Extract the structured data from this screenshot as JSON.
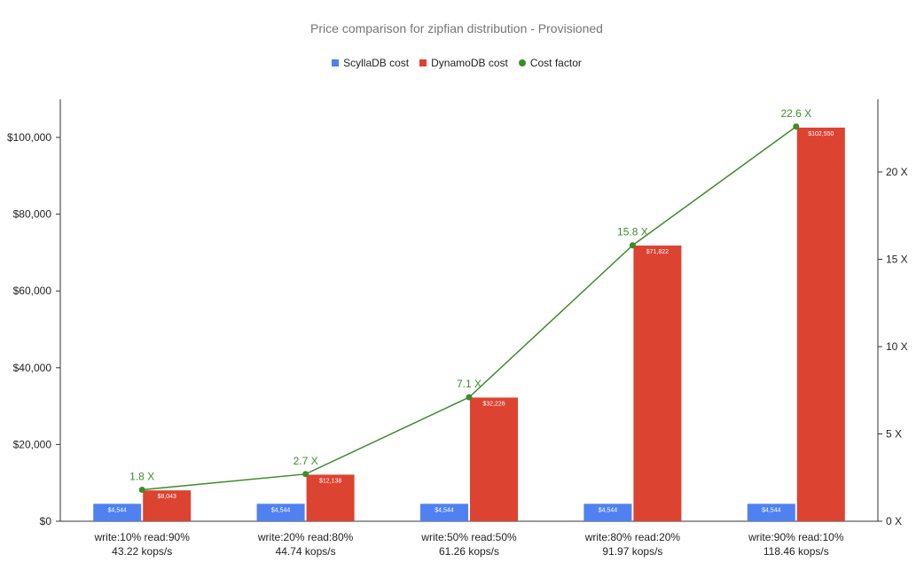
{
  "chart_data": {
    "type": "bar",
    "title": "Price comparison for zipfian distribution - Provisioned",
    "categories": [
      [
        "write:10% read:90%",
        "43.22 kops/s"
      ],
      [
        "write:20% read:80%",
        "44.74 kops/s"
      ],
      [
        "write:50% read:50%",
        "61.26 kops/s"
      ],
      [
        "write:80% read:20%",
        "91.97 kops/s"
      ],
      [
        "write:90% read:10%",
        "118.46 kops/s"
      ]
    ],
    "series": [
      {
        "name": "ScyllaDB cost",
        "type": "bar",
        "axis": "left",
        "color": "#4f81f0",
        "values": [
          4544,
          4544,
          4544,
          4544,
          4544
        ],
        "labels": [
          "$4,544",
          "$4,544",
          "$4,544",
          "$4,544",
          "$4,544"
        ]
      },
      {
        "name": "DynamoDB cost",
        "type": "bar",
        "axis": "left",
        "color": "#dc4331",
        "values": [
          8043,
          12138,
          32226,
          71822,
          102550
        ],
        "labels": [
          "$8,043",
          "$12,138",
          "$32,226",
          "$71,822",
          "$102,550"
        ]
      },
      {
        "name": "Cost factor",
        "type": "line",
        "axis": "right",
        "color": "#3d8b2b",
        "values": [
          1.8,
          2.7,
          7.1,
          15.8,
          22.6
        ],
        "labels": [
          "1.8 X",
          "2.7 X",
          "7.1 X",
          "15.8 X",
          "22.6 X"
        ]
      }
    ],
    "y_left": {
      "ylim": [
        0,
        110000
      ],
      "ticks": [
        0,
        20000,
        40000,
        60000,
        80000,
        100000
      ],
      "tick_labels": [
        "$0",
        "$20,000",
        "$40,000",
        "$60,000",
        "$80,000",
        "$100,000"
      ]
    },
    "y_right": {
      "ylim": [
        0,
        24
      ],
      "ticks": [
        0,
        5,
        10,
        15,
        20
      ],
      "tick_labels": [
        "0 X",
        "5 X",
        "10 X",
        "15 X",
        "20 X"
      ]
    },
    "grid": false,
    "legend_position": "top-center"
  }
}
